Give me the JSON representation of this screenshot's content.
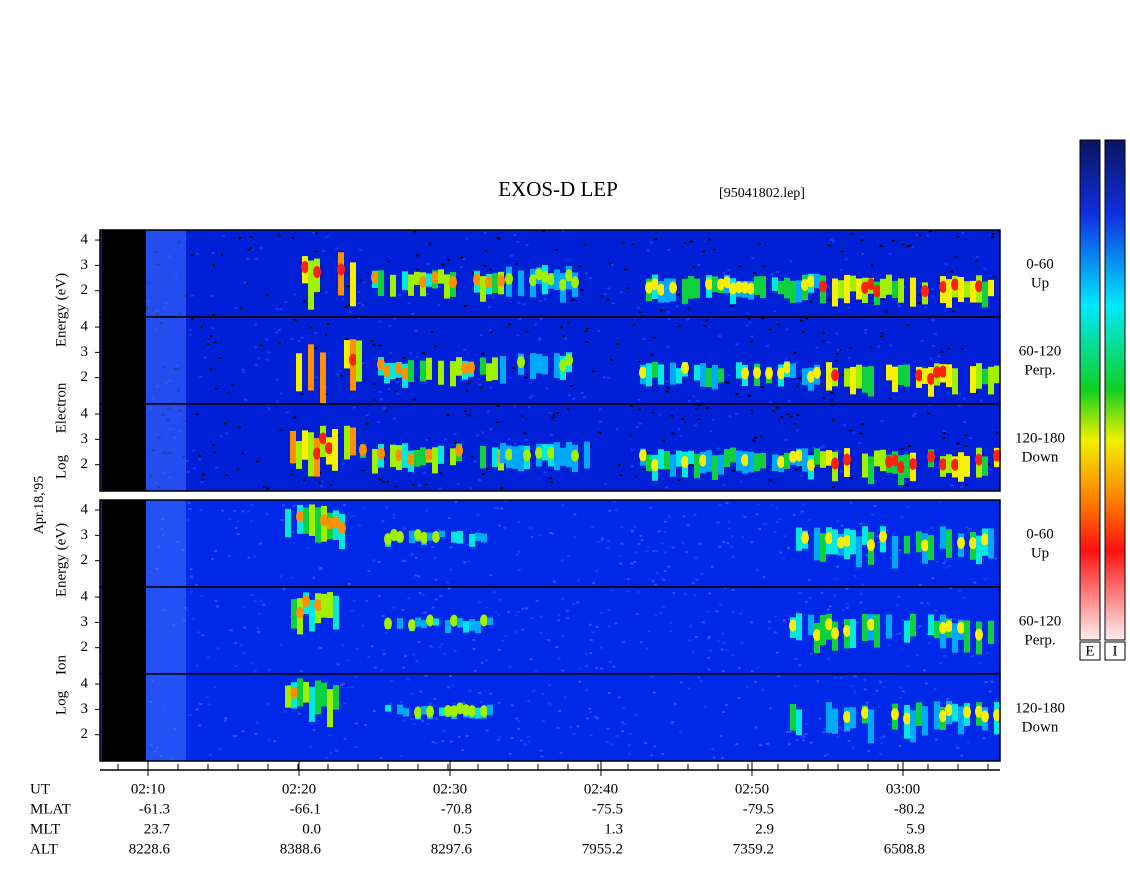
{
  "title": "EXOS-D LEP",
  "file": "[95041802.lep]",
  "date_label": "Apr.18,'95",
  "groups": [
    {
      "label": [
        "Log",
        "Electron",
        "Energy (eV)"
      ],
      "panels": [
        {
          "yticks": [
            4,
            3,
            2
          ],
          "angle": "0-60",
          "direction": "Up"
        },
        {
          "yticks": [
            4,
            3,
            2
          ],
          "angle": "60-120",
          "direction": "Perp."
        },
        {
          "yticks": [
            4,
            3,
            2
          ],
          "angle": "120-180",
          "direction": "Down"
        }
      ]
    },
    {
      "label": [
        "Log",
        "Ion",
        "Energy (eV)"
      ],
      "panels": [
        {
          "yticks": [
            4,
            3,
            2
          ],
          "angle": "0-60",
          "direction": "Up"
        },
        {
          "yticks": [
            4,
            3,
            2
          ],
          "angle": "60-120",
          "direction": "Perp."
        },
        {
          "yticks": [
            4,
            3,
            2
          ],
          "angle": "120-180",
          "direction": "Down"
        }
      ]
    }
  ],
  "ephemeris": [
    {
      "name": "UT",
      "values": [
        "02:10",
        "02:20",
        "02:30",
        "02:40",
        "02:50",
        "03:00"
      ]
    },
    {
      "name": "MLAT",
      "values": [
        "-61.3",
        "-66.1",
        "-70.8",
        "-75.5",
        "-79.5",
        "-80.2"
      ]
    },
    {
      "name": "MLT",
      "values": [
        "23.7",
        "0.0",
        "0.5",
        "1.3",
        "2.9",
        "5.9"
      ]
    },
    {
      "name": "ALT",
      "values": [
        "8228.6",
        "8388.6",
        "8297.6",
        "7955.2",
        "7359.2",
        "6508.8"
      ]
    }
  ],
  "colorbars": [
    "E",
    "I"
  ]
}
